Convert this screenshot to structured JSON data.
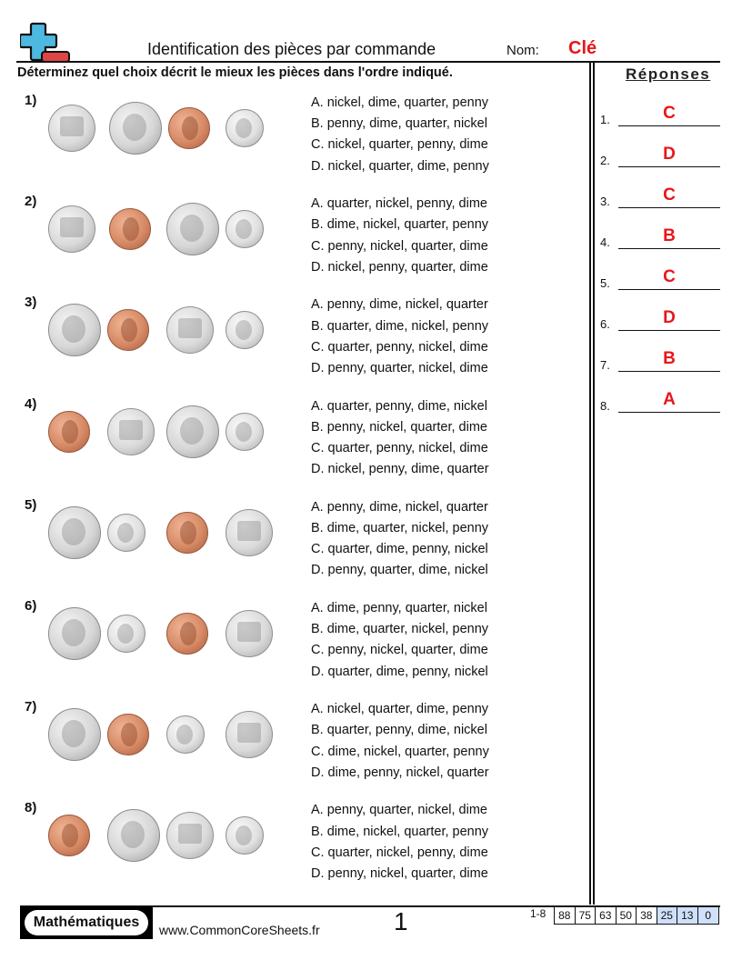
{
  "header": {
    "title": "Identification des pièces par commande",
    "name_label": "Nom:",
    "name_value": "Clé",
    "instructions": "Déterminez quel choix décrit le mieux les pièces dans l'ordre indiqué.",
    "logo_icon": "plus-minus-logo-icon"
  },
  "answers": {
    "title": "Réponses",
    "items": [
      {
        "num": "1.",
        "value": "C"
      },
      {
        "num": "2.",
        "value": "D"
      },
      {
        "num": "3.",
        "value": "C"
      },
      {
        "num": "4.",
        "value": "B"
      },
      {
        "num": "5.",
        "value": "C"
      },
      {
        "num": "6.",
        "value": "D"
      },
      {
        "num": "7.",
        "value": "B"
      },
      {
        "num": "8.",
        "value": "A"
      }
    ]
  },
  "questions": [
    {
      "num": "1)",
      "coins": [
        "nickel",
        "quarter",
        "penny",
        "dime"
      ],
      "choices": [
        "A. nickel, dime, quarter, penny",
        "B. penny, dime, quarter, nickel",
        "C. nickel, quarter, penny, dime",
        "D. nickel, quarter, dime, penny"
      ]
    },
    {
      "num": "2)",
      "coins": [
        "nickel",
        "penny",
        "quarter",
        "dime"
      ],
      "choices": [
        "A. quarter, nickel, penny, dime",
        "B. dime, nickel, quarter, penny",
        "C. penny, nickel, quarter, dime",
        "D. nickel, penny, quarter, dime"
      ]
    },
    {
      "num": "3)",
      "coins": [
        "quarter",
        "penny",
        "nickel",
        "dime"
      ],
      "choices": [
        "A. penny, dime, nickel, quarter",
        "B. quarter, dime, nickel, penny",
        "C. quarter, penny, nickel, dime",
        "D. penny, quarter, nickel, dime"
      ]
    },
    {
      "num": "4)",
      "coins": [
        "penny",
        "nickel",
        "quarter",
        "dime"
      ],
      "choices": [
        "A. quarter, penny, dime, nickel",
        "B. penny, nickel, quarter, dime",
        "C. quarter, penny, nickel, dime",
        "D. nickel, penny, dime, quarter"
      ]
    },
    {
      "num": "5)",
      "coins": [
        "quarter",
        "dime",
        "penny",
        "nickel"
      ],
      "choices": [
        "A. penny, dime, nickel, quarter",
        "B. dime, quarter, nickel, penny",
        "C. quarter, dime, penny, nickel",
        "D. penny, quarter, dime, nickel"
      ]
    },
    {
      "num": "6)",
      "coins": [
        "quarter",
        "dime",
        "penny",
        "nickel"
      ],
      "choices": [
        "A. dime, penny, quarter, nickel",
        "B. dime, quarter, nickel, penny",
        "C. penny, nickel, quarter, dime",
        "D. quarter, dime, penny, nickel"
      ]
    },
    {
      "num": "7)",
      "coins": [
        "quarter",
        "penny",
        "dime",
        "nickel"
      ],
      "choices": [
        "A. nickel, quarter, dime, penny",
        "B. quarter, penny, dime, nickel",
        "C. dime, nickel, quarter, penny",
        "D. dime, penny, nickel, quarter"
      ]
    },
    {
      "num": "8)",
      "coins": [
        "penny",
        "quarter",
        "nickel",
        "dime"
      ],
      "choices": [
        "A. penny, quarter, nickel, dime",
        "B. dime, nickel, quarter, penny",
        "C. quarter, nickel, penny, dime",
        "D. penny, nickel, quarter, dime"
      ]
    }
  ],
  "footer": {
    "brand": "Mathématiques",
    "site": "www.CommonCoreSheets.fr",
    "page": "1",
    "range_label": "1-8",
    "scores": [
      "88",
      "75",
      "63",
      "50",
      "38",
      "25",
      "13",
      "0"
    ],
    "highlighted_scores": [
      "25",
      "13",
      "0"
    ]
  },
  "colors": {
    "answer_red": "#e8161b",
    "logo_blue": "#4db8e0",
    "logo_red": "#e04545",
    "score_highlight": "#cfe0fb"
  }
}
